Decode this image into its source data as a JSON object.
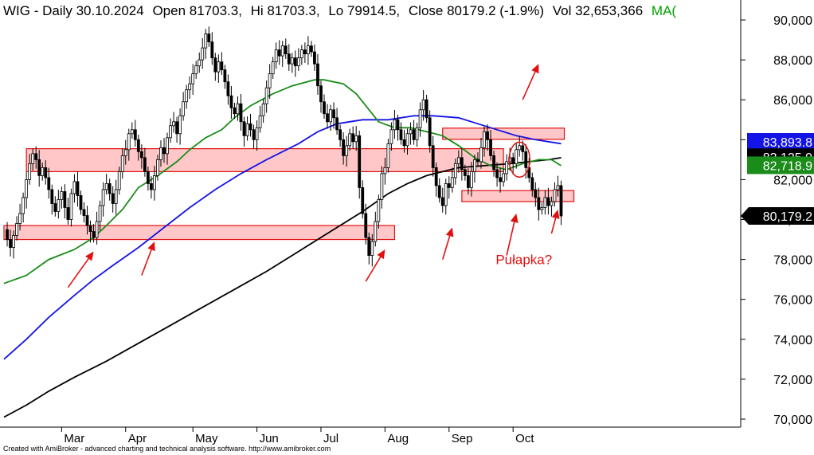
{
  "chart_data": {
    "type": "candlestick",
    "title_prefix": "WIG - Daily 30.10.2024",
    "title_parts": {
      "open": "Open 81703.3,",
      "high": "Hi 81703.3,",
      "low": "Lo 79914.5,",
      "close": "Close 80179.2 (-1.9%)",
      "volume": "Vol 32,653,366",
      "ma": "MA("
    },
    "colors": {
      "title": "#000000",
      "ma_label": "#00a000",
      "ma_short": "#1a8c1a",
      "ma_mid": "#1414e6",
      "ma_long": "#000000",
      "zone_fill": "#ffb4b4",
      "zone_stroke": "#e01010",
      "annotation": "#e01010",
      "candle": "#000000"
    },
    "ylim": [
      69600,
      91000
    ],
    "y_ticks": [
      70000,
      72000,
      74000,
      76000,
      78000,
      80000,
      82000,
      84000,
      86000,
      88000,
      90000
    ],
    "y_tick_labels": [
      "70,000",
      "72,000",
      "74,000",
      "76,000",
      "78,000",
      "80,000",
      "82,000",
      "84,000",
      "86,000",
      "88,000",
      "90,000"
    ],
    "x_ticks": [
      {
        "day": 26,
        "label": "Mar"
      },
      {
        "day": 46,
        "label": "Apr"
      },
      {
        "day": 67,
        "label": "May"
      },
      {
        "day": 87,
        "label": "Jun"
      },
      {
        "day": 107,
        "label": "Jul"
      },
      {
        "day": 127,
        "label": "Aug"
      },
      {
        "day": 147,
        "label": "Sep"
      },
      {
        "day": 167,
        "label": "Oct"
      }
    ],
    "x_range": [
      8,
      182
    ],
    "last_day": 182,
    "price_badges": [
      {
        "value": "83,893.8",
        "price": 83894,
        "bg": "#1414e6",
        "fg": "#ffffff",
        "shape": "rect"
      },
      {
        "value": "83,125.9",
        "price": 83126,
        "bg": "#000000",
        "fg": "#ffffff",
        "shape": "rect"
      },
      {
        "value": "82,718.9",
        "price": 82719,
        "bg": "#1a8c1a",
        "fg": "#ffffff",
        "shape": "rect"
      },
      {
        "value": "80,179.2",
        "price": 80179,
        "bg": "#000000",
        "fg": "#ffffff",
        "shape": "arrow"
      }
    ],
    "zones": [
      {
        "from_day": 8,
        "to_day": 130,
        "low": 79000,
        "high": 79700
      },
      {
        "from_day": 15,
        "to_day": 164,
        "low": 82400,
        "high": 83550
      },
      {
        "from_day": 145,
        "to_day": 183,
        "low": 84020,
        "high": 84580
      },
      {
        "from_day": 151,
        "to_day": 186,
        "low": 80900,
        "high": 81450
      }
    ],
    "arrows": [
      {
        "from_day": 28,
        "from_price": 76600,
        "to_day": 36,
        "to_price": 78400
      },
      {
        "from_day": 51,
        "from_price": 77200,
        "to_day": 55,
        "to_price": 78900
      },
      {
        "from_day": 121,
        "from_price": 76900,
        "to_day": 127,
        "to_price": 78500
      },
      {
        "from_day": 145,
        "from_price": 78000,
        "to_day": 148,
        "to_price": 79600
      },
      {
        "from_day": 170,
        "from_price": 86000,
        "to_day": 175,
        "to_price": 87800
      },
      {
        "from_day": 165,
        "from_price": 78200,
        "to_day": 168,
        "to_price": 80300
      },
      {
        "from_day": 179,
        "from_price": 79300,
        "to_day": 181,
        "to_price": 80500
      }
    ],
    "circle": {
      "day": 169,
      "price": 83000
    },
    "annotation_text": "Pułapka?",
    "annotation_pos": {
      "day": 174,
      "price": 78000
    },
    "ma_short": [
      [
        8,
        76800
      ],
      [
        15,
        77200
      ],
      [
        22,
        78000
      ],
      [
        30,
        78500
      ],
      [
        36,
        79100
      ],
      [
        40,
        79700
      ],
      [
        45,
        80500
      ],
      [
        50,
        81600
      ],
      [
        56,
        82200
      ],
      [
        62,
        82900
      ],
      [
        66,
        83500
      ],
      [
        71,
        84100
      ],
      [
        76,
        84500
      ],
      [
        80,
        85100
      ],
      [
        85,
        85700
      ],
      [
        92,
        86300
      ],
      [
        98,
        86700
      ],
      [
        105,
        87000
      ],
      [
        108,
        87000
      ],
      [
        114,
        86800
      ],
      [
        118,
        86300
      ],
      [
        121,
        85700
      ],
      [
        125,
        84900
      ],
      [
        130,
        84600
      ],
      [
        135,
        84600
      ],
      [
        140,
        84400
      ],
      [
        145,
        84200
      ],
      [
        150,
        83700
      ],
      [
        155,
        83100
      ],
      [
        160,
        82700
      ],
      [
        165,
        82500
      ],
      [
        170,
        82800
      ],
      [
        175,
        83000
      ],
      [
        179,
        83000
      ],
      [
        182,
        82700
      ]
    ],
    "ma_mid": [
      [
        8,
        73000
      ],
      [
        15,
        74000
      ],
      [
        22,
        75100
      ],
      [
        30,
        76200
      ],
      [
        36,
        77000
      ],
      [
        42,
        77700
      ],
      [
        50,
        78600
      ],
      [
        58,
        79600
      ],
      [
        66,
        80600
      ],
      [
        74,
        81500
      ],
      [
        82,
        82300
      ],
      [
        90,
        83000
      ],
      [
        100,
        83800
      ],
      [
        106,
        84400
      ],
      [
        112,
        84800
      ],
      [
        120,
        85000
      ],
      [
        128,
        85000
      ],
      [
        136,
        85200
      ],
      [
        142,
        85200
      ],
      [
        150,
        85100
      ],
      [
        156,
        84800
      ],
      [
        162,
        84500
      ],
      [
        168,
        84200
      ],
      [
        174,
        84000
      ],
      [
        178,
        83900
      ],
      [
        182,
        83800
      ]
    ],
    "ma_long": [
      [
        8,
        70100
      ],
      [
        15,
        70700
      ],
      [
        22,
        71400
      ],
      [
        30,
        72100
      ],
      [
        40,
        72900
      ],
      [
        50,
        73800
      ],
      [
        60,
        74700
      ],
      [
        70,
        75600
      ],
      [
        80,
        76500
      ],
      [
        90,
        77400
      ],
      [
        100,
        78400
      ],
      [
        110,
        79400
      ],
      [
        120,
        80400
      ],
      [
        128,
        81300
      ],
      [
        134,
        81800
      ],
      [
        140,
        82200
      ],
      [
        145,
        82400
      ],
      [
        150,
        82600
      ],
      [
        158,
        82700
      ],
      [
        166,
        82800
      ],
      [
        172,
        82900
      ],
      [
        178,
        83000
      ],
      [
        182,
        83100
      ]
    ],
    "price_path": [
      [
        8,
        79500
      ],
      [
        9,
        79000
      ],
      [
        10,
        78600
      ],
      [
        11,
        79200
      ],
      [
        12,
        79800
      ],
      [
        13,
        80300
      ],
      [
        14,
        81100
      ],
      [
        15,
        82000
      ],
      [
        16,
        82800
      ],
      [
        17,
        83300
      ],
      [
        18,
        83000
      ],
      [
        19,
        82200
      ],
      [
        20,
        82600
      ],
      [
        21,
        82100
      ],
      [
        22,
        81500
      ],
      [
        23,
        80800
      ],
      [
        24,
        80400
      ],
      [
        25,
        81000
      ],
      [
        26,
        81400
      ],
      [
        27,
        80600
      ],
      [
        28,
        80000
      ],
      [
        29,
        81300
      ],
      [
        30,
        81900
      ],
      [
        31,
        81200
      ],
      [
        32,
        80500
      ],
      [
        33,
        80200
      ],
      [
        34,
        79700
      ],
      [
        35,
        79400
      ],
      [
        36,
        79100
      ],
      [
        37,
        79900
      ],
      [
        38,
        80700
      ],
      [
        39,
        81500
      ],
      [
        40,
        81800
      ],
      [
        41,
        81300
      ],
      [
        42,
        80800
      ],
      [
        43,
        81500
      ],
      [
        44,
        82400
      ],
      [
        45,
        83200
      ],
      [
        46,
        83500
      ],
      [
        47,
        84300
      ],
      [
        48,
        84500
      ],
      [
        49,
        84000
      ],
      [
        50,
        83400
      ],
      [
        51,
        83100
      ],
      [
        52,
        82400
      ],
      [
        53,
        81800
      ],
      [
        54,
        81500
      ],
      [
        55,
        82200
      ],
      [
        56,
        83000
      ],
      [
        57,
        83600
      ],
      [
        58,
        83300
      ],
      [
        59,
        84100
      ],
      [
        60,
        84700
      ],
      [
        61,
        84900
      ],
      [
        62,
        84300
      ],
      [
        63,
        85200
      ],
      [
        64,
        85900
      ],
      [
        65,
        86500
      ],
      [
        66,
        86800
      ],
      [
        67,
        87300
      ],
      [
        68,
        87700
      ],
      [
        69,
        88000
      ],
      [
        70,
        88600
      ],
      [
        71,
        89300
      ],
      [
        72,
        88900
      ],
      [
        73,
        88100
      ],
      [
        74,
        87400
      ],
      [
        75,
        87900
      ],
      [
        76,
        87500
      ],
      [
        77,
        86900
      ],
      [
        78,
        86200
      ],
      [
        79,
        85600
      ],
      [
        80,
        85300
      ],
      [
        81,
        85800
      ],
      [
        82,
        84900
      ],
      [
        83,
        84200
      ],
      [
        84,
        84800
      ],
      [
        85,
        84500
      ],
      [
        86,
        84000
      ],
      [
        87,
        84600
      ],
      [
        88,
        85200
      ],
      [
        89,
        85800
      ],
      [
        90,
        86600
      ],
      [
        91,
        87300
      ],
      [
        92,
        87900
      ],
      [
        93,
        88500
      ],
      [
        94,
        88200
      ],
      [
        95,
        88700
      ],
      [
        96,
        88300
      ],
      [
        97,
        87800
      ],
      [
        98,
        88100
      ],
      [
        99,
        87700
      ],
      [
        100,
        88100
      ],
      [
        101,
        88500
      ],
      [
        102,
        88300
      ],
      [
        103,
        88700
      ],
      [
        104,
        88400
      ],
      [
        105,
        87800
      ],
      [
        106,
        86700
      ],
      [
        107,
        85900
      ],
      [
        108,
        85300
      ],
      [
        109,
        84900
      ],
      [
        110,
        85500
      ],
      [
        111,
        85100
      ],
      [
        112,
        84500
      ],
      [
        113,
        84000
      ],
      [
        114,
        83200
      ],
      [
        115,
        83700
      ],
      [
        116,
        84300
      ],
      [
        117,
        83900
      ],
      [
        118,
        84200
      ],
      [
        119,
        81600
      ],
      [
        120,
        80300
      ],
      [
        121,
        79100
      ],
      [
        122,
        78200
      ],
      [
        123,
        78900
      ],
      [
        124,
        79900
      ],
      [
        125,
        81000
      ],
      [
        126,
        82300
      ],
      [
        127,
        82600
      ],
      [
        128,
        83800
      ],
      [
        129,
        84500
      ],
      [
        130,
        85000
      ],
      [
        131,
        84500
      ],
      [
        132,
        84000
      ],
      [
        133,
        83700
      ],
      [
        134,
        84300
      ],
      [
        135,
        84500
      ],
      [
        136,
        84000
      ],
      [
        137,
        84600
      ],
      [
        138,
        85500
      ],
      [
        139,
        86000
      ],
      [
        140,
        85100
      ],
      [
        141,
        83700
      ],
      [
        142,
        82600
      ],
      [
        143,
        81700
      ],
      [
        144,
        81100
      ],
      [
        145,
        80700
      ],
      [
        146,
        81800
      ],
      [
        147,
        81600
      ],
      [
        148,
        82100
      ],
      [
        149,
        82800
      ],
      [
        150,
        83100
      ],
      [
        151,
        82500
      ],
      [
        152,
        82200
      ],
      [
        153,
        81600
      ],
      [
        154,
        82400
      ],
      [
        155,
        83000
      ],
      [
        156,
        82900
      ],
      [
        157,
        83600
      ],
      [
        158,
        84400
      ],
      [
        159,
        84000
      ],
      [
        160,
        83200
      ],
      [
        161,
        82500
      ],
      [
        162,
        82100
      ],
      [
        163,
        81900
      ],
      [
        164,
        82300
      ],
      [
        165,
        82900
      ],
      [
        166,
        83100
      ],
      [
        167,
        82800
      ],
      [
        168,
        83500
      ],
      [
        169,
        83700
      ],
      [
        170,
        83400
      ],
      [
        171,
        82600
      ],
      [
        172,
        82100
      ],
      [
        173,
        81500
      ],
      [
        174,
        81100
      ],
      [
        175,
        80500
      ],
      [
        176,
        80600
      ],
      [
        177,
        81100
      ],
      [
        178,
        80700
      ],
      [
        179,
        80900
      ],
      [
        180,
        81500
      ],
      [
        181,
        81700
      ],
      [
        182,
        80179
      ]
    ]
  },
  "footer": {
    "credit": "Created with AmiBroker - advanced charting and technical analysis software. http://www.amibroker.com"
  }
}
